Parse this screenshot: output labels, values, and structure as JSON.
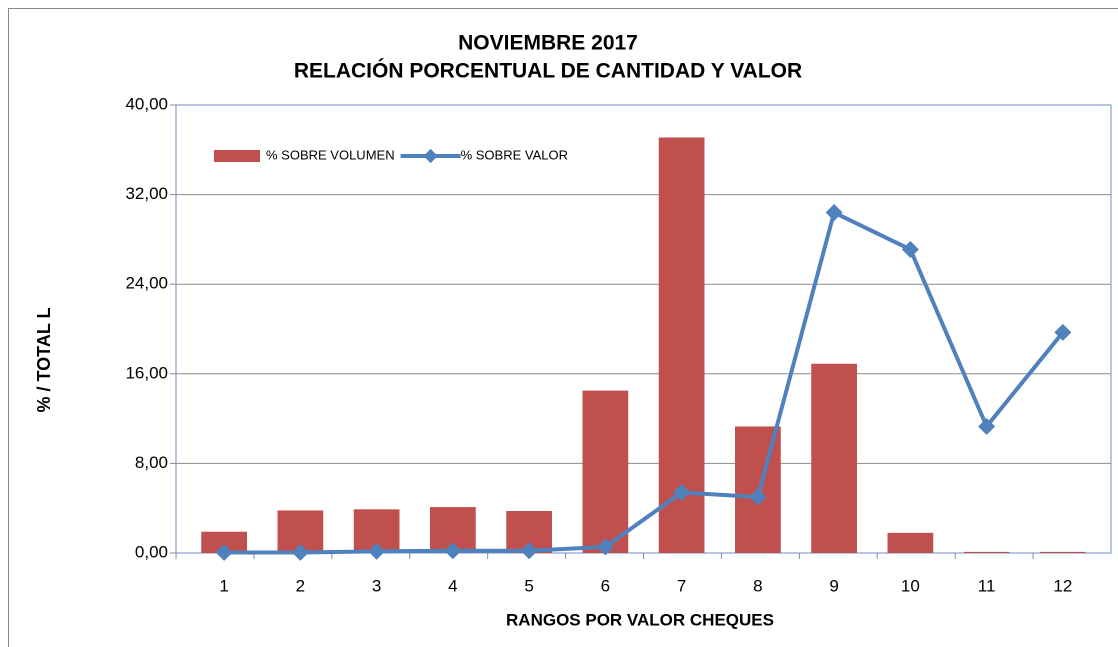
{
  "chart_data": {
    "type": "bar_line",
    "title": "NOVIEMBRE  2017",
    "subtitle": "RELACIÓN PORCENTUAL DE CANTIDAD Y VALOR",
    "x_label": "RANGOS POR VALOR CHEQUES",
    "y_label": "%  /   TOTAL L",
    "categories": [
      "1",
      "2",
      "3",
      "4",
      "5",
      "6",
      "7",
      "8",
      "9",
      "10",
      "11",
      "12"
    ],
    "series": [
      {
        "name": "% SOBRE VOLUMEN",
        "type": "bar",
        "color": "#c0504d",
        "values": [
          1.9,
          3.8,
          3.9,
          4.1,
          3.75,
          14.5,
          37.1,
          11.3,
          16.9,
          1.8,
          0.1,
          0.1
        ]
      },
      {
        "name": "% SOBRE VALOR",
        "type": "line",
        "color": "#4f81bd",
        "values": [
          0.05,
          0.05,
          0.15,
          0.2,
          0.2,
          0.55,
          5.4,
          5.0,
          30.4,
          27.1,
          11.3,
          19.7
        ]
      }
    ],
    "ylim": [
      0,
      40
    ],
    "yticks": [
      {
        "value": 0,
        "label": "0,00"
      },
      {
        "value": 8,
        "label": "8,00"
      },
      {
        "value": 16,
        "label": "16,00"
      },
      {
        "value": 24,
        "label": "24,00"
      },
      {
        "value": 32,
        "label": "32,00"
      },
      {
        "value": 40,
        "label": "40,00"
      }
    ],
    "grid": true,
    "legend": "upper left"
  }
}
